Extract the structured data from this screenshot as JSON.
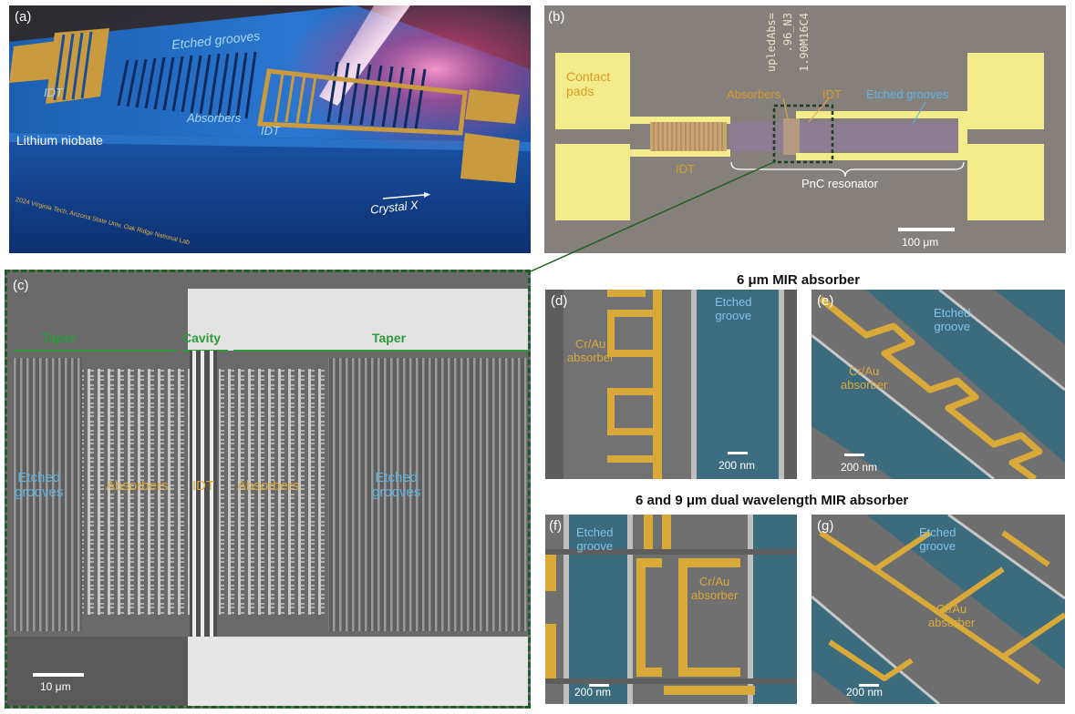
{
  "panel_a": {
    "label": "(a)",
    "etched_grooves": "Etched grooves",
    "idt_left": "IDT",
    "idt_right": "IDT",
    "absorbers": "Absorbers",
    "substrate": "Lithium niobate",
    "credit": "2024 Virginia Tech, Arizona State Univ, Oak Ridge National Lab",
    "crystal_axis": "Crystal X"
  },
  "panel_b": {
    "label": "(b)",
    "contact_pads": "Contact\npads",
    "absorbers": "Absorbers",
    "idt_top": "IDT",
    "etched_grooves": "Etched grooves",
    "idt_left": "IDT",
    "pnc_resonator": "PnC resonator",
    "scale_bar": "100 μm",
    "chip_text_1": "1.90M16C4",
    "chip_text_2": ".96_N3",
    "chip_text_3": "upledAbs="
  },
  "panel_c": {
    "label": "(c)",
    "taper_left": "Taper",
    "cavity": "Cavity",
    "taper_right": "Taper",
    "etched_left": "Etched\ngrooves",
    "absorbers_left": "Absorbers",
    "idt": "IDT",
    "absorbers_right": "Absorbers",
    "etched_right": "Etched\ngrooves",
    "scale_bar": "10 μm"
  },
  "heading_top": "6 μm MIR absorber",
  "heading_bottom": "6 and 9 μm dual wavelength MIR absorber",
  "panel_d": {
    "label": "(d)",
    "absorber": "Cr/Au\nabsorber",
    "groove": "Etched\ngroove",
    "scale_bar": "200 nm"
  },
  "panel_e": {
    "label": "(e)",
    "groove": "Etched\ngroove",
    "absorber": "Cr/Au\nabsorber",
    "scale_bar": "200 nm"
  },
  "panel_f": {
    "label": "(f)",
    "groove": "Etched\ngroove",
    "absorber": "Cr/Au\nabsorber",
    "scale_bar": "200 nm"
  },
  "panel_g": {
    "label": "(g)",
    "groove": "Etched\ngroove",
    "absorber": "Cr/Au\nabsorber",
    "scale_bar": "200 nm"
  },
  "colors": {
    "gold": "#d9aa3a",
    "blue_label": "#5fb4e0",
    "green_label": "#2e9a3c",
    "sem_gray": "#707070",
    "groove_blue": "#34687e",
    "pad_yellow": "#f4ec8a",
    "dashed_green": "#1f5e24"
  }
}
